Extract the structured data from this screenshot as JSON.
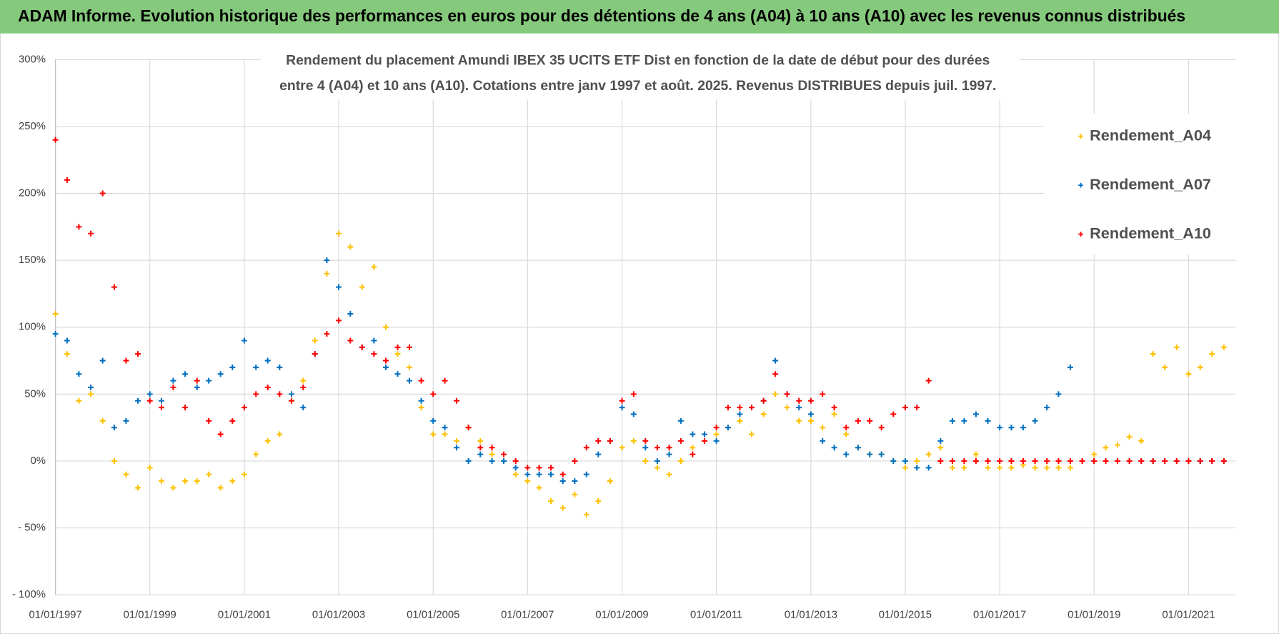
{
  "header": {
    "title": "ADAM Informe. Evolution historique des performances en euros pour des détentions de 4 ans (A04) à 10 ans (A10) avec les revenus connus distribués"
  },
  "chart_data": {
    "type": "scatter",
    "title": [
      "Rendement du placement Amundi IBEX 35 UCITS ETF Dist en fonction de la date de début pour des durées",
      "entre 4 (A04) et 10 ans (A10).  Cotations entre janv 1997 et août. 2025. Revenus DISTRIBUES depuis juil. 1997."
    ],
    "x": [
      "1997-01-01",
      "1997-04-01",
      "1997-07-01",
      "1997-10-01",
      "1998-01-01",
      "1998-04-01",
      "1998-07-01",
      "1998-10-01",
      "1999-01-01",
      "1999-04-01",
      "1999-07-01",
      "1999-10-01",
      "2000-01-01",
      "2000-04-01",
      "2000-07-01",
      "2000-10-01",
      "2001-01-01",
      "2001-04-01",
      "2001-07-01",
      "2001-10-01",
      "2002-01-01",
      "2002-04-01",
      "2002-07-01",
      "2002-10-01",
      "2003-01-01",
      "2003-04-01",
      "2003-07-01",
      "2003-10-01",
      "2004-01-01",
      "2004-04-01",
      "2004-07-01",
      "2004-10-01",
      "2005-01-01",
      "2005-04-01",
      "2005-07-01",
      "2005-10-01",
      "2006-01-01",
      "2006-04-01",
      "2006-07-01",
      "2006-10-01",
      "2007-01-01",
      "2007-04-01",
      "2007-07-01",
      "2007-10-01",
      "2008-01-01",
      "2008-04-01",
      "2008-07-01",
      "2008-10-01",
      "2009-01-01",
      "2009-04-01",
      "2009-07-01",
      "2009-10-01",
      "2010-01-01",
      "2010-04-01",
      "2010-07-01",
      "2010-10-01",
      "2011-01-01",
      "2011-04-01",
      "2011-07-01",
      "2011-10-01",
      "2012-01-01",
      "2012-04-01",
      "2012-07-01",
      "2012-10-01",
      "2013-01-01",
      "2013-04-01",
      "2013-07-01",
      "2013-10-01",
      "2014-01-01",
      "2014-04-01",
      "2014-07-01",
      "2014-10-01",
      "2015-01-01",
      "2015-04-01",
      "2015-07-01",
      "2015-10-01",
      "2016-01-01",
      "2016-04-01",
      "2016-07-01",
      "2016-10-01",
      "2017-01-01",
      "2017-04-01",
      "2017-07-01",
      "2017-10-01",
      "2018-01-01",
      "2018-04-01",
      "2018-07-01",
      "2018-10-01",
      "2019-01-01",
      "2019-04-01",
      "2019-07-01",
      "2019-10-01",
      "2020-01-01",
      "2020-04-01",
      "2020-07-01",
      "2020-10-01",
      "2021-01-01",
      "2021-04-01",
      "2021-07-01",
      "2021-10-01"
    ],
    "series": [
      {
        "name": "Rendement_A04",
        "color": "#ffc000",
        "values": [
          110,
          80,
          45,
          50,
          30,
          0,
          -10,
          -20,
          -5,
          -15,
          -20,
          -15,
          -15,
          -10,
          -20,
          -15,
          -10,
          5,
          15,
          20,
          45,
          60,
          90,
          140,
          170,
          160,
          130,
          145,
          100,
          80,
          70,
          40,
          20,
          20,
          15,
          25,
          15,
          5,
          0,
          -10,
          -15,
          -20,
          -30,
          -35,
          -25,
          -40,
          -30,
          -15,
          10,
          15,
          0,
          -5,
          -10,
          0,
          10,
          15,
          20,
          25,
          30,
          20,
          35,
          50,
          40,
          30,
          30,
          25,
          35,
          20,
          10,
          5,
          5,
          0,
          -5,
          0,
          5,
          10,
          -5,
          -5,
          5,
          -5,
          -5,
          -5,
          -3,
          -5,
          -5,
          -5,
          -5,
          0,
          5,
          10,
          12,
          18,
          15,
          80,
          70,
          85,
          65,
          70,
          80,
          85
        ]
      },
      {
        "name": "Rendement_A07",
        "color": "#0070c0",
        "values": [
          95,
          90,
          65,
          55,
          75,
          25,
          30,
          45,
          50,
          45,
          60,
          65,
          55,
          60,
          65,
          70,
          90,
          70,
          75,
          70,
          50,
          40,
          80,
          150,
          130,
          110,
          85,
          90,
          70,
          65,
          60,
          45,
          30,
          25,
          10,
          0,
          5,
          0,
          0,
          -5,
          -10,
          -10,
          -10,
          -15,
          -15,
          -10,
          5,
          15,
          40,
          35,
          10,
          0,
          5,
          30,
          20,
          20,
          15,
          25,
          35,
          40,
          45,
          75,
          50,
          40,
          35,
          15,
          10,
          5,
          10,
          5,
          5,
          0,
          0,
          -5,
          -5,
          15,
          30,
          30,
          35,
          30,
          25,
          25,
          25,
          30,
          40,
          50,
          70,
          0,
          0,
          0,
          0,
          0,
          0,
          0,
          0,
          0,
          0,
          0,
          0,
          0
        ]
      },
      {
        "name": "Rendement_A10",
        "color": "#ff0000",
        "values": [
          240,
          210,
          175,
          170,
          200,
          130,
          75,
          80,
          45,
          40,
          55,
          40,
          60,
          30,
          20,
          30,
          40,
          50,
          55,
          50,
          45,
          55,
          80,
          95,
          105,
          90,
          85,
          80,
          75,
          85,
          85,
          60,
          50,
          60,
          45,
          25,
          10,
          10,
          5,
          0,
          -5,
          -5,
          -5,
          -10,
          0,
          10,
          15,
          15,
          45,
          50,
          15,
          10,
          10,
          15,
          5,
          15,
          25,
          40,
          40,
          40,
          45,
          65,
          50,
          45,
          45,
          50,
          40,
          25,
          30,
          30,
          25,
          35,
          40,
          40,
          60,
          0,
          0,
          0,
          0,
          0,
          0,
          0,
          0,
          0,
          0,
          0,
          0,
          0,
          0,
          0,
          0,
          0,
          0,
          0,
          0,
          0,
          0,
          0,
          0,
          0
        ]
      }
    ],
    "xlim": [
      "1997-01-01",
      "2022-01-01"
    ],
    "xticks": [
      {
        "value": "1997-01-01",
        "label": "01/01/1997"
      },
      {
        "value": "1999-01-01",
        "label": "01/01/1999"
      },
      {
        "value": "2001-01-01",
        "label": "01/01/2001"
      },
      {
        "value": "2003-01-01",
        "label": "01/01/2003"
      },
      {
        "value": "2005-01-01",
        "label": "01/01/2005"
      },
      {
        "value": "2007-01-01",
        "label": "01/01/2007"
      },
      {
        "value": "2009-01-01",
        "label": "01/01/2009"
      },
      {
        "value": "2011-01-01",
        "label": "01/01/2011"
      },
      {
        "value": "2013-01-01",
        "label": "01/01/2013"
      },
      {
        "value": "2015-01-01",
        "label": "01/01/2015"
      },
      {
        "value": "2017-01-01",
        "label": "01/01/2017"
      },
      {
        "value": "2019-01-01",
        "label": "01/01/2019"
      },
      {
        "value": "2021-01-01",
        "label": "01/01/2021"
      }
    ],
    "ylim": [
      -100,
      300
    ],
    "yticks": [
      {
        "value": -100,
        "label": "- 100%"
      },
      {
        "value": -50,
        "label": "- 50%"
      },
      {
        "value": 0,
        "label": "0%"
      },
      {
        "value": 50,
        "label": "50%"
      },
      {
        "value": 100,
        "label": "100%"
      },
      {
        "value": 150,
        "label": "150%"
      },
      {
        "value": 200,
        "label": "200%"
      },
      {
        "value": 250,
        "label": "250%"
      },
      {
        "value": 300,
        "label": "300%"
      }
    ],
    "grid": true,
    "legend": "top-right"
  }
}
